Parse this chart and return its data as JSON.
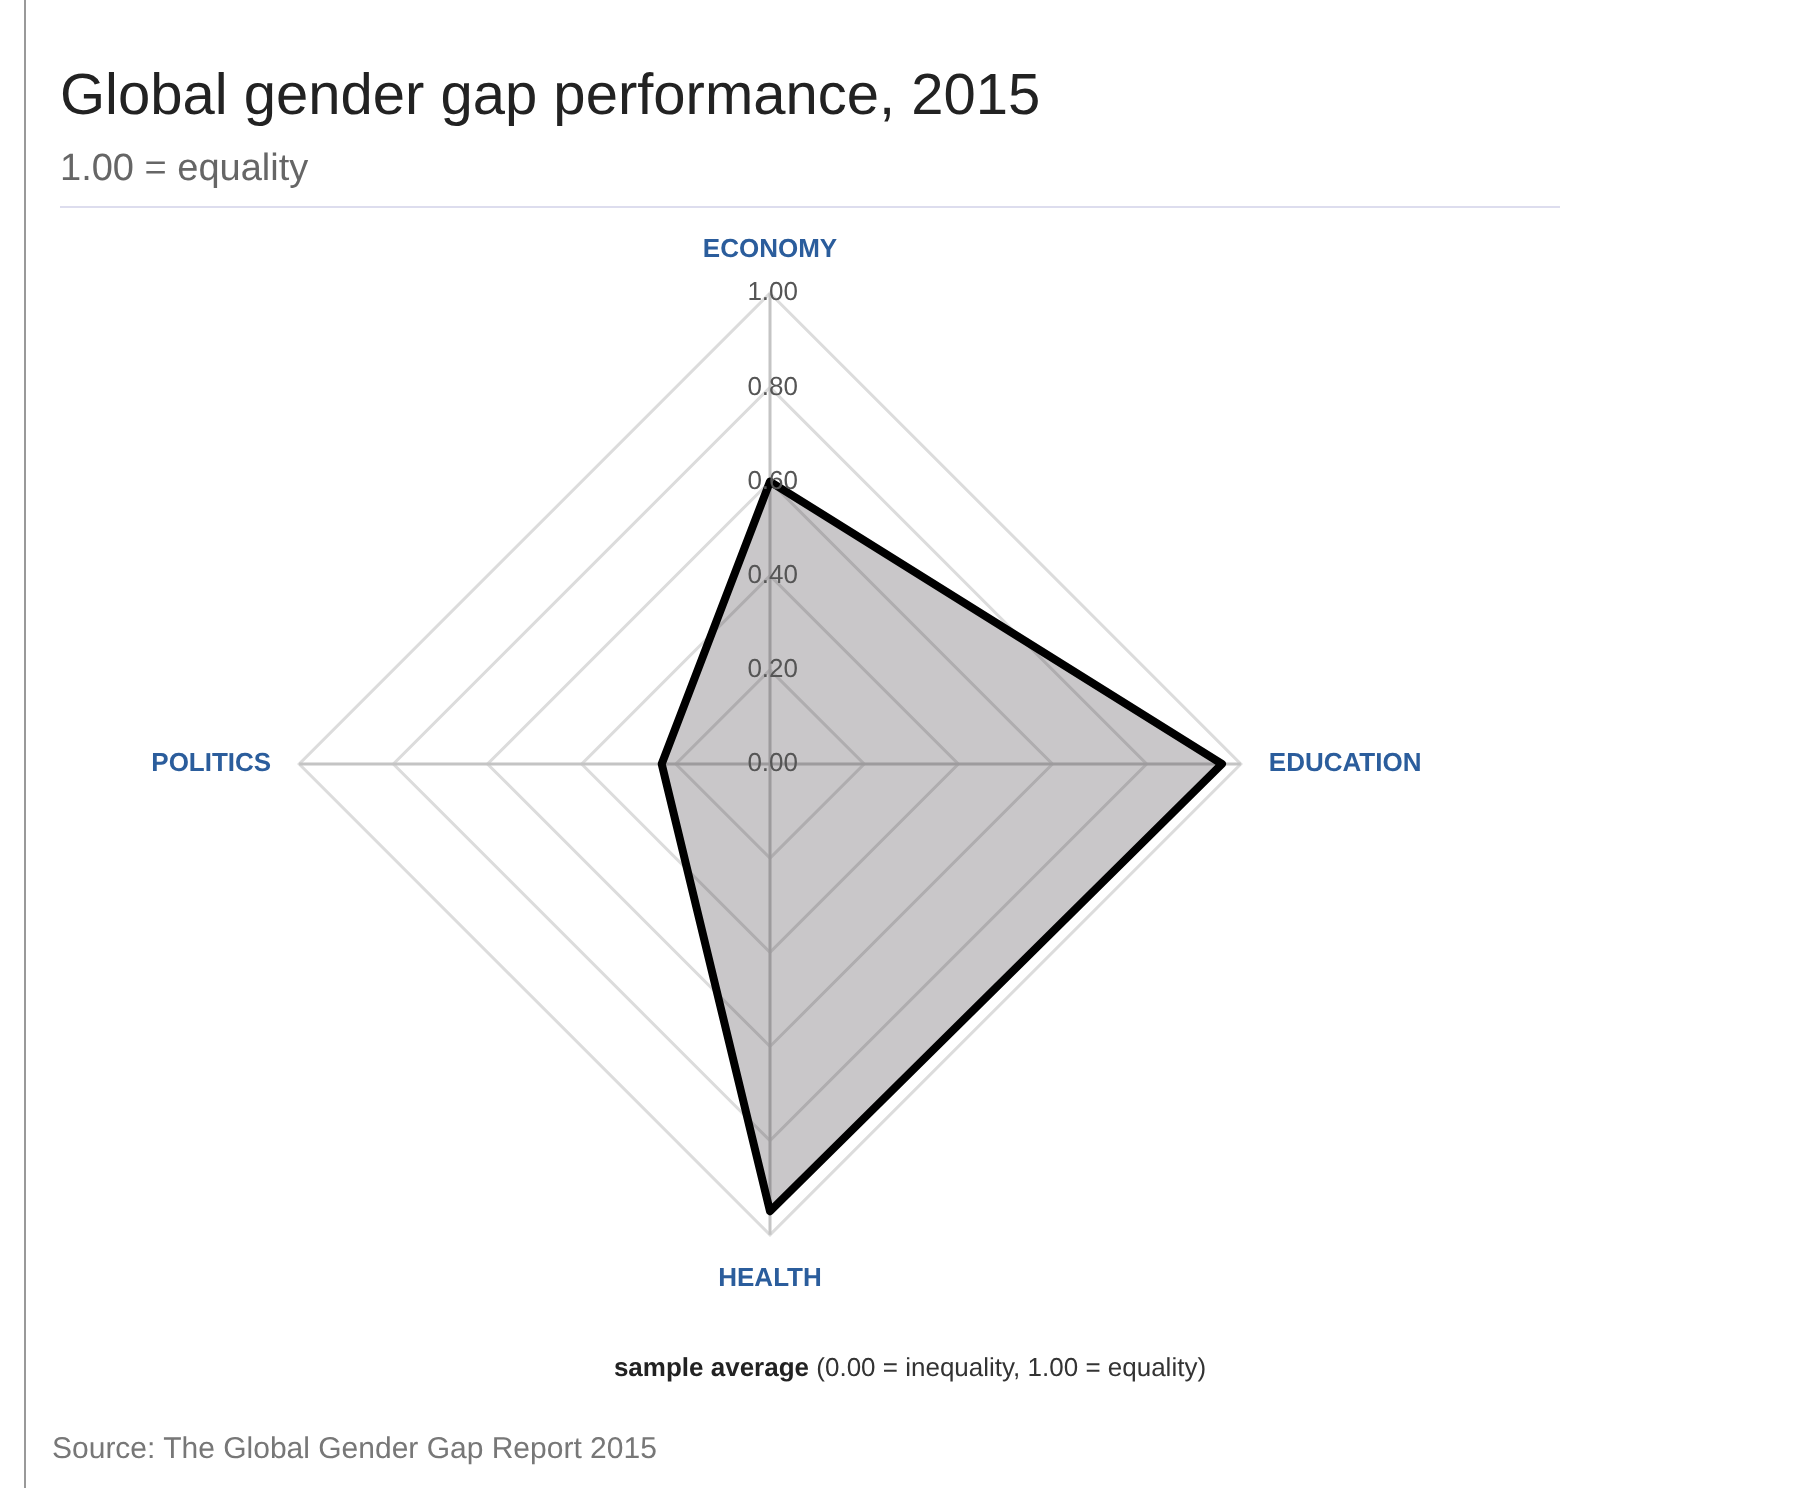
{
  "chart_data": {
    "type": "radar",
    "title": "Global gender gap performance, 2015",
    "subtitle": "1.00 = equality",
    "categories": [
      "ECONOMY",
      "EDUCATION",
      "HEALTH",
      "POLITICS"
    ],
    "series": [
      {
        "name": "sample average",
        "color": "#000000",
        "values": [
          0.6,
          0.96,
          0.95,
          0.23
        ]
      }
    ],
    "ylim": [
      0,
      1
    ],
    "yticks": [
      {
        "value": 0,
        "label": "0.00"
      },
      {
        "value": 0.2,
        "label": "0.20"
      },
      {
        "value": 0.4,
        "label": "0.40"
      },
      {
        "value": 0.6,
        "label": "0.60"
      },
      {
        "value": 0.8,
        "label": "0.80"
      },
      {
        "value": 1,
        "label": "1.00"
      }
    ],
    "grid": true,
    "legend": "bottom",
    "marker": "none",
    "annotations": [
      "(0.00 = inequality, 1.00 = equality)",
      "Source: The Global Gender Gap Report 2015"
    ]
  }
}
